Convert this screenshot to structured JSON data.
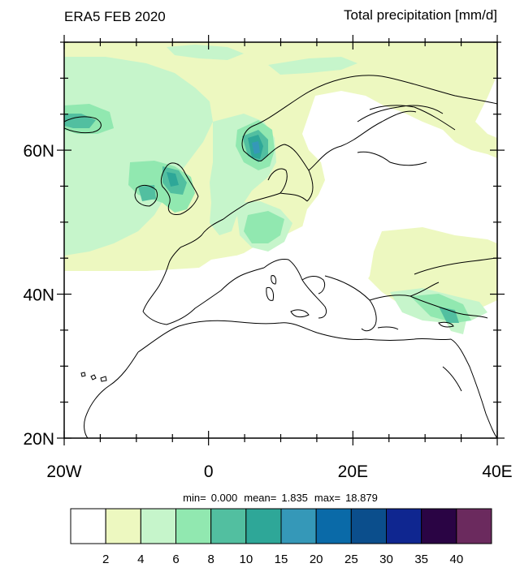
{
  "header": {
    "left_title": "ERA5 FEB 2020",
    "right_title": "Total precipitation [mm/d]"
  },
  "axes": {
    "x_ticks": [
      {
        "value": -20,
        "label": "20W"
      },
      {
        "value": 0,
        "label": "0"
      },
      {
        "value": 20,
        "label": "20E"
      },
      {
        "value": 40,
        "label": "40E"
      }
    ],
    "y_ticks": [
      {
        "value": 60,
        "label": "60N"
      },
      {
        "value": 40,
        "label": "40N"
      },
      {
        "value": 20,
        "label": "20N"
      }
    ],
    "lon_range": [
      -20,
      40
    ],
    "lat_range": [
      20,
      75
    ]
  },
  "stats": {
    "min_label": "min=",
    "min_value": "0.000",
    "mean_label": "mean=",
    "mean_value": "1.835",
    "max_label": "max=",
    "max_value": "18.879"
  },
  "colorbar": {
    "colors": [
      "#ffffff",
      "#edf8c0",
      "#c6f5cb",
      "#91e8b0",
      "#52bfa0",
      "#2ea798",
      "#3598b8",
      "#0a6aa8",
      "#0b4e8c",
      "#0f2690",
      "#2a0444",
      "#6b2a5e"
    ],
    "labels": [
      "2",
      "4",
      "6",
      "8",
      "10",
      "15",
      "20",
      "25",
      "30",
      "35",
      "40"
    ]
  }
}
